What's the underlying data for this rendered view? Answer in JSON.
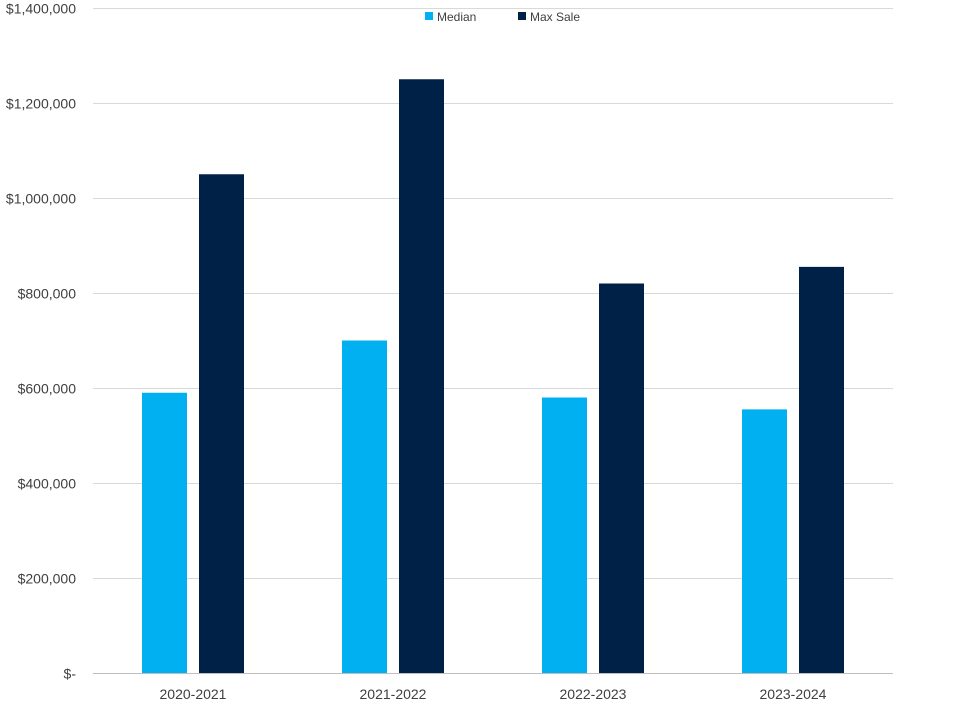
{
  "chart_data": {
    "type": "bar",
    "categories": [
      "2020-2021",
      "2021-2022",
      "2022-2023",
      "2023-2024"
    ],
    "series": [
      {
        "name": "Median",
        "values": [
          590000,
          700000,
          580000,
          555000
        ],
        "color": "#00B0F0"
      },
      {
        "name": "Max Sale",
        "values": [
          1050000,
          1250000,
          820000,
          855000
        ],
        "color": "#002147"
      }
    ],
    "ylim": [
      0,
      1400000
    ],
    "y_ticks": [
      0,
      200000,
      400000,
      600000,
      800000,
      1000000,
      1200000,
      1400000
    ],
    "y_tick_labels": [
      "$-",
      "$200,000",
      "$400,000",
      "$600,000",
      "$800,000",
      "$1,000,000",
      "$1,200,000",
      "$1,400,000"
    ],
    "grid": true,
    "legend_position": "top-center"
  }
}
